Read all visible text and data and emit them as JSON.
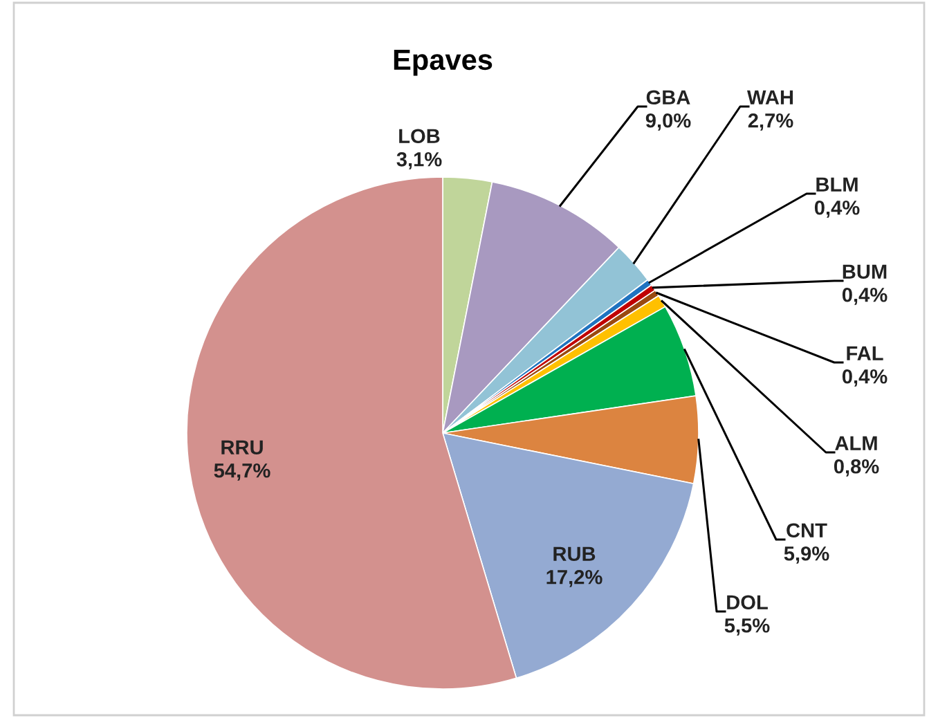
{
  "chart_data": {
    "type": "pie",
    "title": "Epaves",
    "categories": [
      "LOB",
      "GBA",
      "WAH",
      "BLM",
      "BUM",
      "FAL",
      "ALM",
      "CNT",
      "DOL",
      "RUB",
      "RRU"
    ],
    "values": [
      3.1,
      9.0,
      2.7,
      0.4,
      0.4,
      0.4,
      0.8,
      5.9,
      5.5,
      17.2,
      54.7
    ],
    "value_labels": [
      "3,1%",
      "9,0%",
      "2,7%",
      "0,4%",
      "0,4%",
      "0,4%",
      "0,8%",
      "5,9%",
      "5,5%",
      "17,2%",
      "54,7%"
    ],
    "colors": [
      "#c0d59a",
      "#a899c0",
      "#92c3d6",
      "#1f73c0",
      "#c00000",
      "#9a4a10",
      "#ffc000",
      "#00b050",
      "#dc8440",
      "#94aad2",
      "#d3918e"
    ],
    "legend": false
  }
}
